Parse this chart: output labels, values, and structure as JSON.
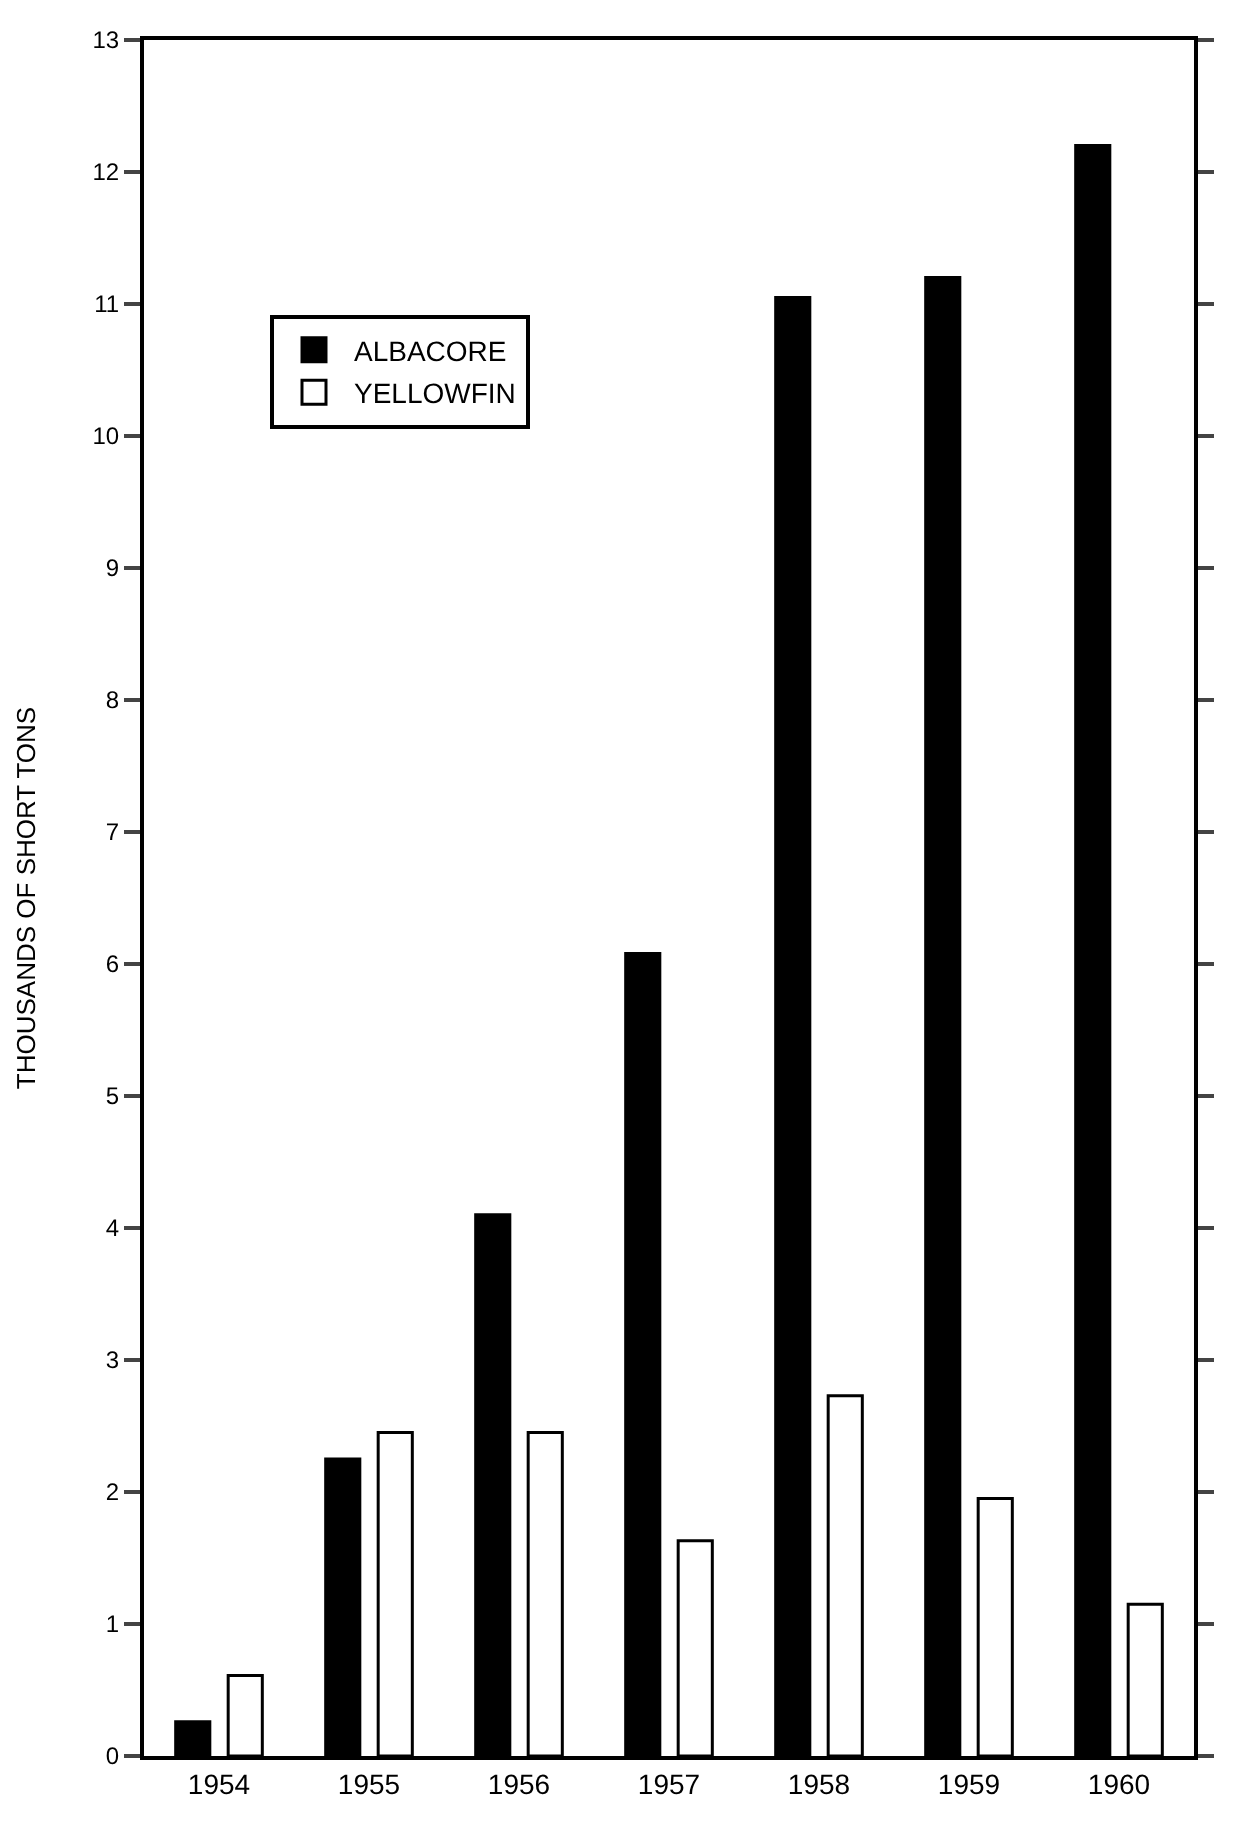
{
  "chart_data": {
    "type": "bar",
    "ylabel": "THOUSANDS OF SHORT TONS",
    "categories": [
      "1954",
      "1955",
      "1956",
      "1957",
      "1958",
      "1959",
      "1960"
    ],
    "series": [
      {
        "name": "ALBACORE",
        "color": "#000000",
        "values": [
          0.26,
          2.25,
          4.1,
          6.08,
          11.05,
          11.2,
          12.2
        ]
      },
      {
        "name": "YELLOWFIN",
        "color": "#ffffff",
        "values": [
          0.61,
          2.45,
          2.45,
          1.63,
          2.73,
          1.95,
          1.15
        ]
      }
    ],
    "ylim": [
      0,
      13
    ],
    "yticks": [
      0,
      1,
      2,
      3,
      4,
      5,
      6,
      7,
      8,
      9,
      10,
      11,
      12,
      13
    ],
    "legend": "top left"
  }
}
